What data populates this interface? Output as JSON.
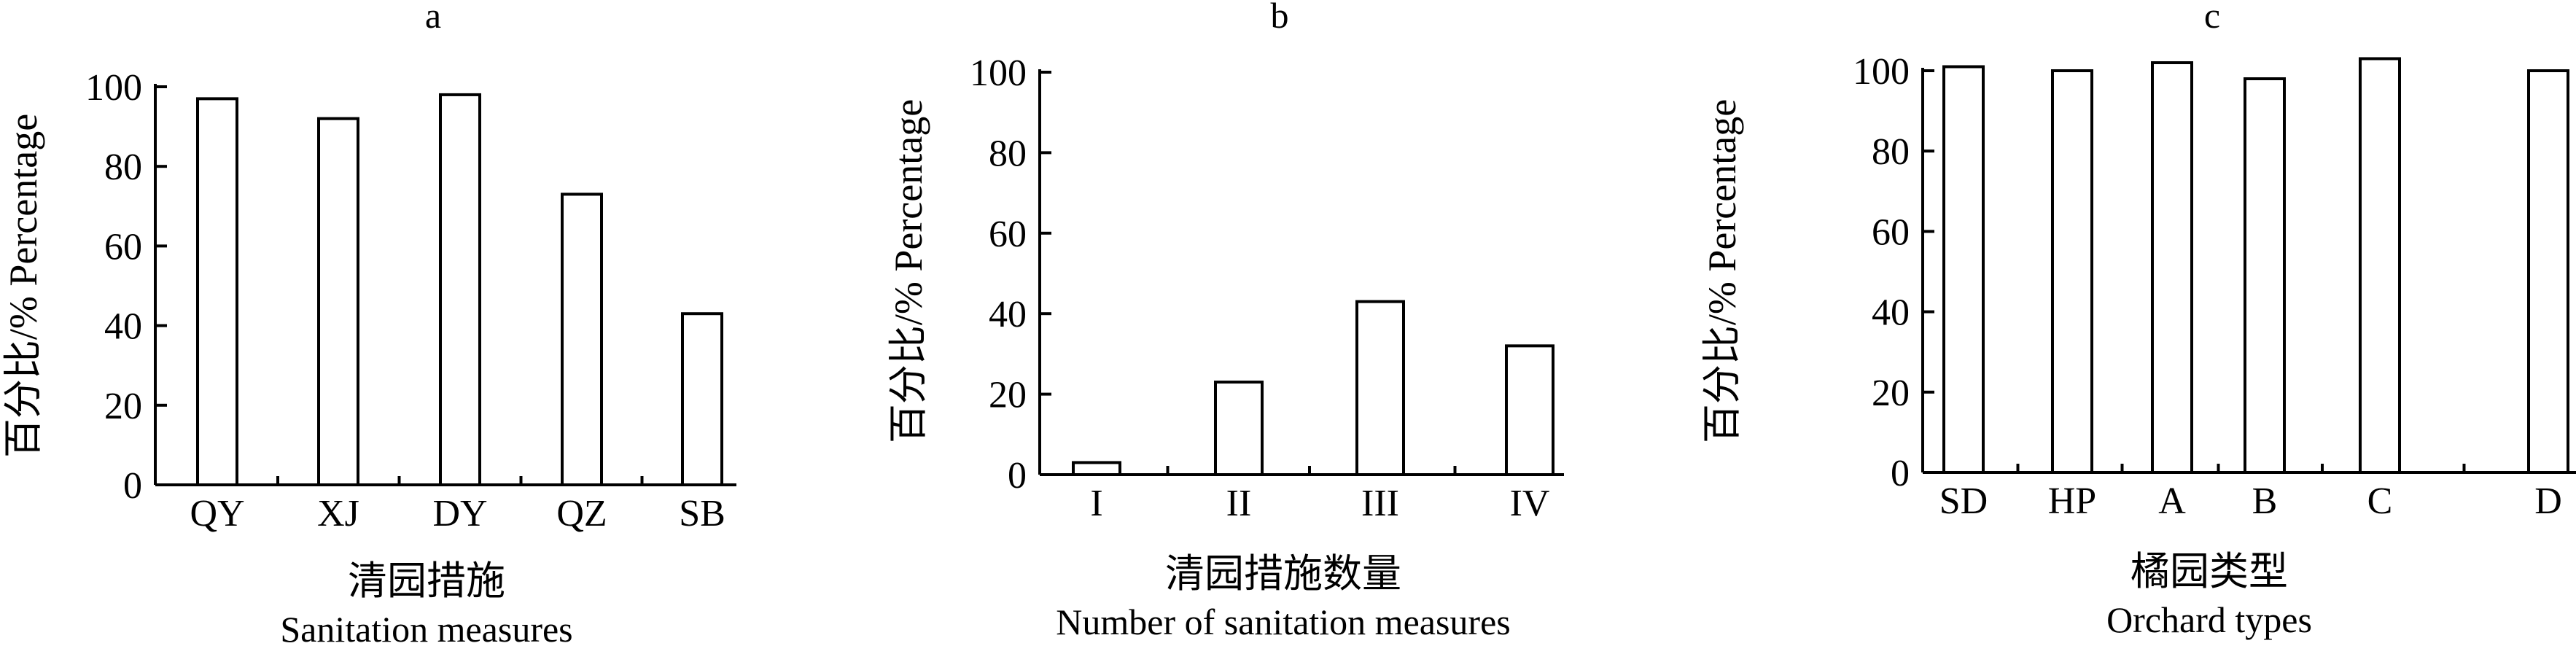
{
  "chart_data": [
    {
      "type": "bar",
      "panel": "a",
      "categories": [
        "QY",
        "XJ",
        "DY",
        "QZ",
        "SB"
      ],
      "values": [
        97,
        92,
        98,
        73,
        43
      ],
      "ylabel": "百分比/%  Percentage",
      "xlabel_cn": "清园措施",
      "xlabel_en": "Sanitation measures",
      "ylim": [
        0,
        100
      ],
      "yticks": [
        0,
        20,
        40,
        60,
        80,
        100
      ],
      "grid": false
    },
    {
      "type": "bar",
      "panel": "b",
      "categories": [
        "I",
        "II",
        "III",
        "IV"
      ],
      "values": [
        3,
        23,
        43,
        32
      ],
      "ylabel": "百分比/%  Percentage",
      "xlabel_cn": "清园措施数量",
      "xlabel_en": "Number of sanitation measures",
      "ylim": [
        0,
        100
      ],
      "yticks": [
        0,
        20,
        40,
        60,
        80,
        100
      ],
      "grid": false
    },
    {
      "type": "bar",
      "panel": "c",
      "categories": [
        "SD",
        "HP",
        "A",
        "B",
        "C",
        "D"
      ],
      "values": [
        101,
        100,
        102,
        98,
        103,
        100
      ],
      "ylabel": "百分比/%  Percentage",
      "xlabel_cn": "橘园类型",
      "xlabel_en": "Orchard types",
      "ylim": [
        0,
        100
      ],
      "yticks": [
        0,
        20,
        40,
        60,
        80,
        100
      ],
      "grid": false
    }
  ]
}
